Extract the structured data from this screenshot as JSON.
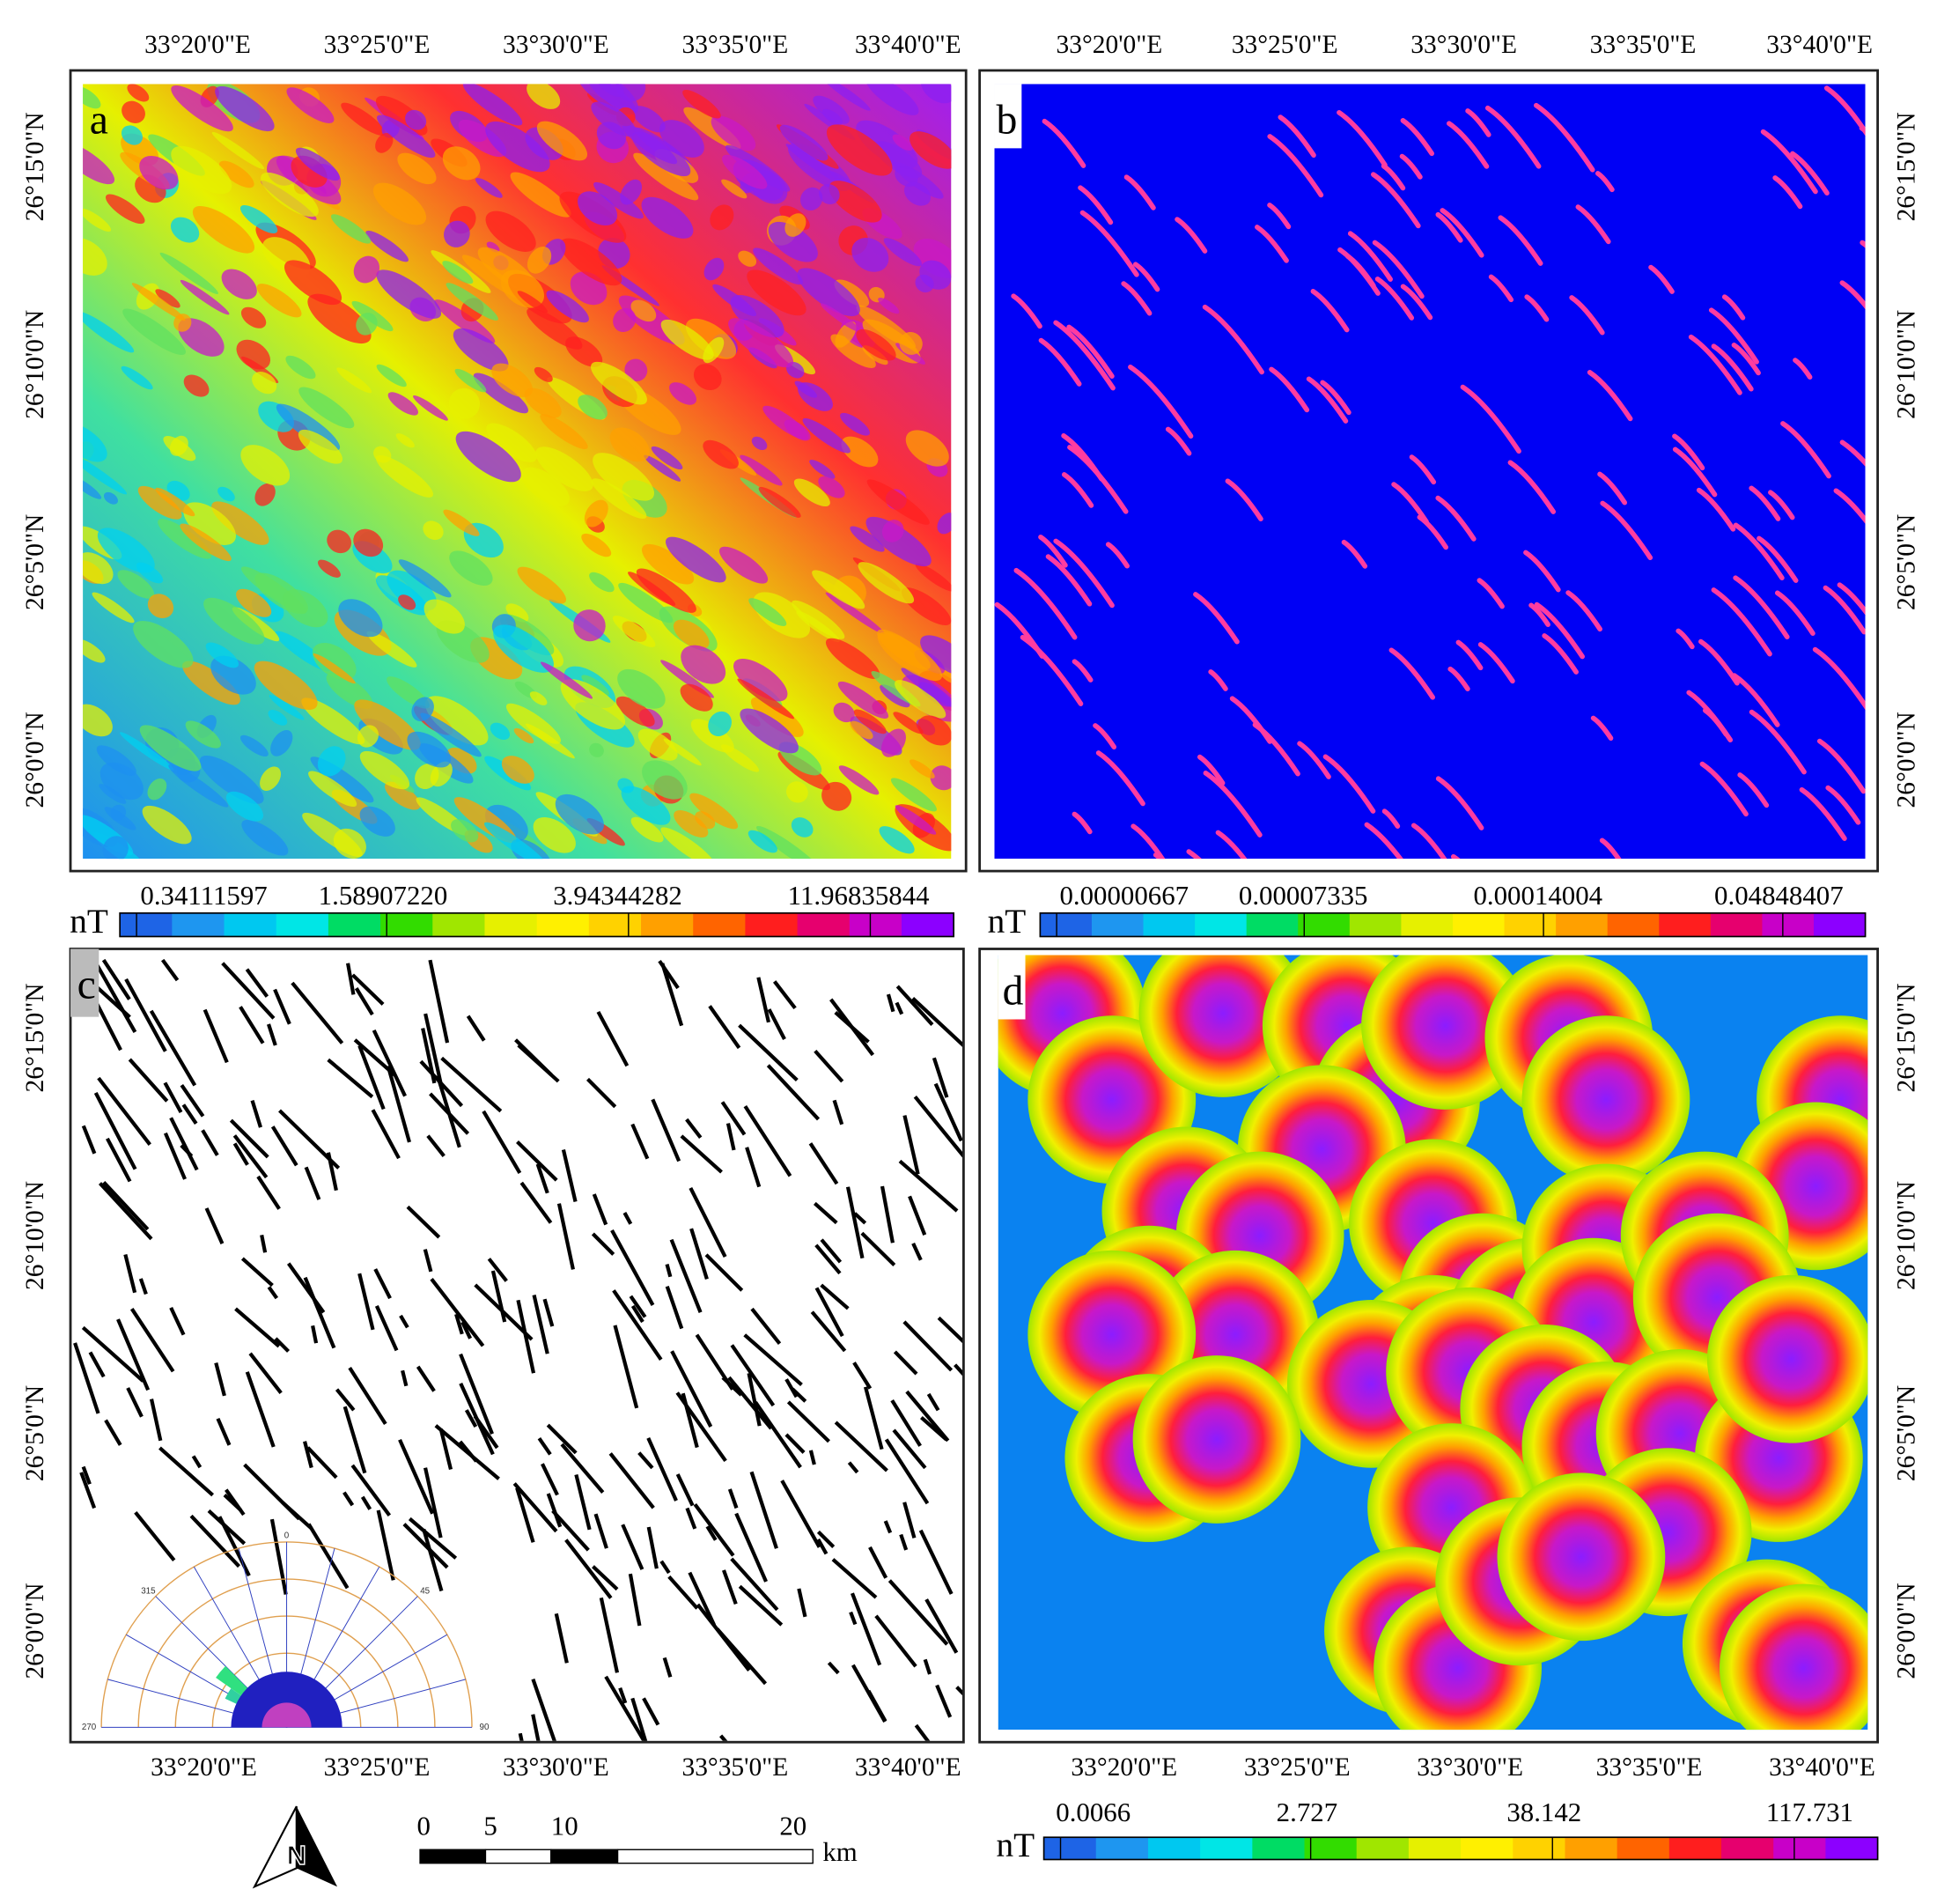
{
  "panels": [
    {
      "label": "a",
      "x_labels": [
        "33°20'0\"E",
        "33°25'0\"E",
        "33°30'0\"E",
        "33°35'0\"E",
        "33°40'0\"E"
      ],
      "y_labels": [
        "26°15'0\"N",
        "26°10'0\"N",
        "26°5'0\"N",
        "26°0'0\"N"
      ]
    },
    {
      "label": "b",
      "x_labels": [
        "33°20'0\"E",
        "33°25'0\"E",
        "33°30'0\"E",
        "33°35'0\"E",
        "33°40'0\"E"
      ],
      "y_labels": [
        "26°15'0\"N",
        "26°10'0\"N",
        "26°5'0\"N",
        "26°0'0\"N"
      ]
    },
    {
      "label": "c",
      "x_labels": [
        "33°20'0\"E",
        "33°25'0\"E",
        "33°30'0\"E",
        "33°35'0\"E",
        "33°40'0\"E"
      ],
      "y_labels": [
        "26°15'0\"N",
        "26°10'0\"N",
        "26°5'0\"N",
        "26°0'0\"N"
      ]
    },
    {
      "label": "d",
      "x_labels": [
        "33°20'0\"E",
        "33°25'0\"E",
        "33°30'0\"E",
        "33°35'0\"E",
        "33°40'0\"E"
      ],
      "y_labels": [
        "26°15'0\"N",
        "26°10'0\"N",
        "26°5'0\"N",
        "26°0'0\"N"
      ]
    }
  ],
  "colorbars": [
    {
      "unit": "nT",
      "labels": [
        "0.34111597",
        "1.58907220",
        "3.94344282",
        "11.96835844"
      ]
    },
    {
      "unit": "nT",
      "labels": [
        "0.00000667",
        "0.00007335",
        "0.00014004",
        "0.04848407"
      ]
    },
    {
      "unit": "nT",
      "labels": [
        "0.0066",
        "2.727",
        "38.142",
        "117.731"
      ]
    }
  ],
  "rose": {
    "labels": [
      "0",
      "45",
      "315",
      "270",
      "90"
    ]
  },
  "scale_bar": {
    "labels": [
      "0",
      "5",
      "10",
      "20"
    ],
    "unit": "km"
  },
  "north_arrow": "N"
}
